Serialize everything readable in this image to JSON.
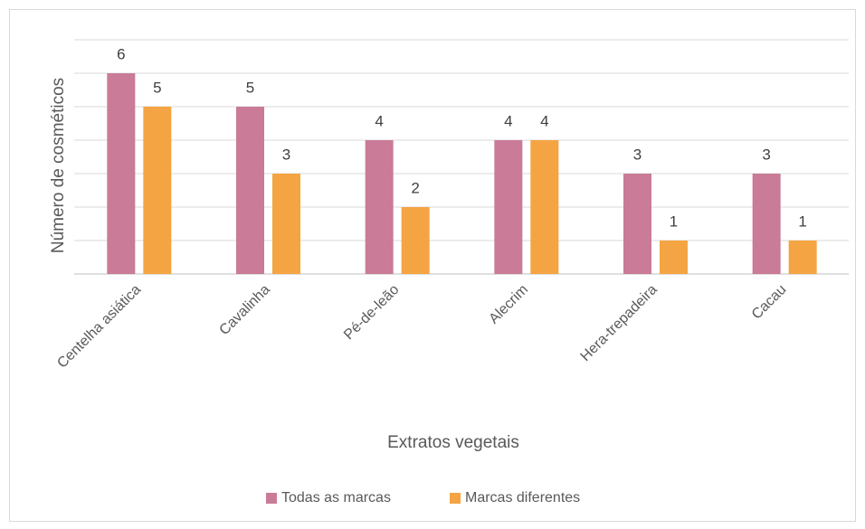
{
  "chart_data": {
    "type": "bar",
    "categories": [
      "Centelha asiática",
      "Cavalinha",
      "Pé-de-leão",
      "Alecrim",
      "Hera-trepadeira",
      "Cacau"
    ],
    "series": [
      {
        "name": "Todas as marcas",
        "color": "#c97b98",
        "values": [
          6,
          5,
          4,
          4,
          3,
          3
        ]
      },
      {
        "name": "Marcas diferentes",
        "color": "#f4a442",
        "values": [
          5,
          3,
          2,
          4,
          1,
          1
        ]
      }
    ],
    "x_label": "Extratos vegetais",
    "y_label": "Número de cosméticos",
    "ylim": [
      0,
      7
    ],
    "yticks": [
      0,
      1,
      2,
      3,
      4,
      5,
      6,
      7
    ],
    "grid": true,
    "legend": "bottom"
  }
}
